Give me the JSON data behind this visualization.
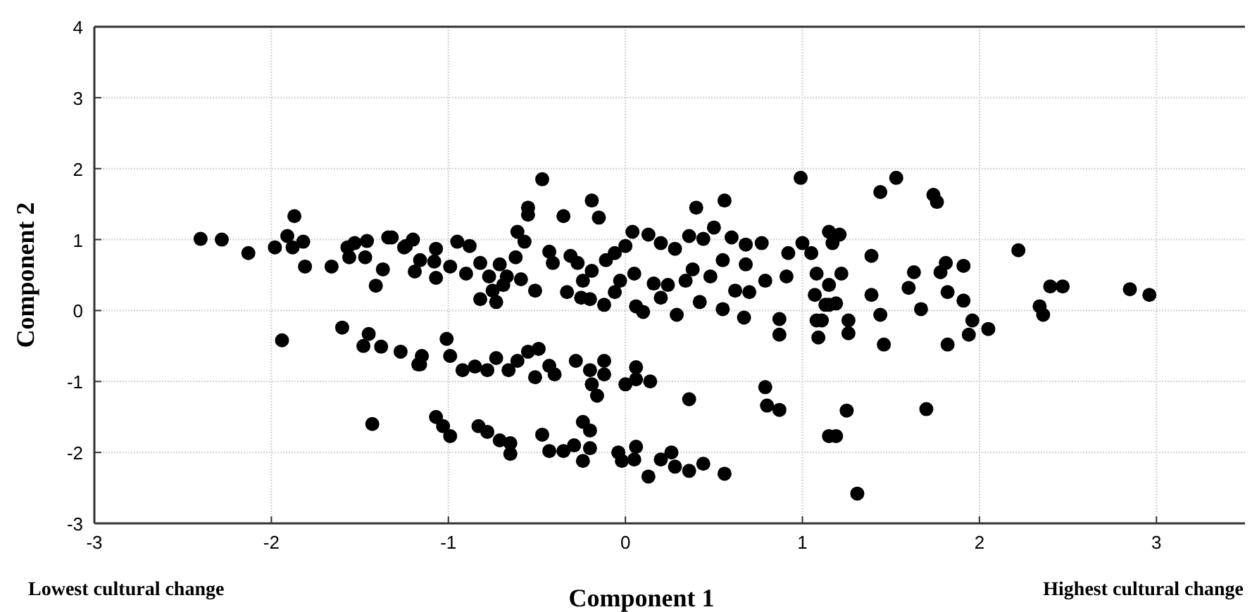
{
  "chart_data": {
    "type": "scatter",
    "xlabel": "Component 1",
    "ylabel": "Component 2",
    "annotations": [
      "Lowest cultural change",
      "Highest cultural change"
    ],
    "xlim": [
      -3,
      3.5
    ],
    "ylim": [
      -3,
      4
    ],
    "xticks": [
      -3,
      -2,
      -1,
      0,
      1,
      2,
      3
    ],
    "yticks": [
      -3,
      -2,
      -1,
      0,
      1,
      2,
      3,
      4
    ],
    "grid": true,
    "marker": "circle",
    "series": [
      {
        "color": "#000000",
        "x": [
          -2.4,
          -2.28,
          -2.13,
          -1.98,
          -1.91,
          -1.87,
          -1.88,
          -1.82,
          -1.81,
          -1.66,
          -1.57,
          -1.56,
          -1.53,
          -1.46,
          -1.47,
          -1.41,
          -1.37,
          -1.34,
          -1.25,
          -1.2,
          -1.19,
          -1.94,
          -1.6,
          -1.48,
          -1.45,
          -1.38,
          -1.27,
          -1.17,
          -1.43,
          -1.32,
          -1.24,
          -1.16,
          -1.07,
          -1.07,
          -1.08,
          -0.99,
          -0.95,
          -0.88,
          -0.9,
          -0.82,
          -0.82,
          -0.77,
          -0.73,
          -0.71,
          -0.75,
          -0.69,
          -0.67,
          -0.62,
          -0.61,
          -0.57,
          -0.59,
          -0.55,
          -0.55,
          -0.51,
          -0.47,
          -0.43,
          -0.41,
          -0.35,
          -0.33,
          -0.31,
          -0.27,
          -0.24,
          -0.25,
          -0.19,
          -0.15,
          -0.19,
          -0.2,
          -0.12,
          -0.11,
          -0.06,
          0.0,
          0.04,
          -0.03,
          -0.06,
          0.05,
          0.06,
          0.1,
          0.13,
          0.2,
          0.16,
          0.2,
          0.24,
          0.28,
          0.29,
          0.34,
          0.36,
          0.38,
          0.4,
          0.42,
          0.44,
          0.48,
          0.5,
          0.56,
          0.55,
          0.55,
          0.6,
          0.62,
          0.68,
          0.68,
          0.67,
          0.7,
          0.77,
          0.79,
          0.87,
          0.87,
          0.91,
          0.92,
          0.99,
          1.0,
          1.05,
          1.07,
          1.08,
          1.09,
          1.08,
          1.15,
          1.15,
          1.15,
          -1.15,
          -1.16,
          -1.01,
          -0.99,
          -0.92,
          -0.85,
          -0.78,
          -0.73,
          -0.66,
          -0.61,
          -0.55,
          -0.49,
          -0.51,
          -0.43,
          -0.4,
          -0.28,
          -0.2,
          -0.12,
          -0.19,
          -0.16,
          -0.12,
          0.0,
          0.06,
          0.06,
          0.14,
          0.36,
          0.79,
          0.8,
          0.87,
          -1.07,
          -1.03,
          -0.99,
          -0.83,
          -0.78,
          -0.71,
          -0.65,
          -0.65,
          -0.47,
          -0.43,
          -0.35,
          -0.29,
          -0.24,
          -0.2,
          -0.24,
          -0.2,
          -0.04,
          -0.02,
          0.06,
          0.05,
          0.13,
          0.2,
          0.26,
          0.28,
          0.36,
          0.44,
          0.56,
          1.21,
          1.17,
          1.22,
          1.13,
          1.19,
          1.11,
          1.26,
          1.26,
          1.44,
          1.53,
          1.39,
          1.39,
          1.44,
          1.46,
          1.6,
          1.63,
          1.67,
          1.74,
          1.76,
          1.78,
          1.81,
          1.82,
          1.82,
          1.91,
          1.91,
          1.96,
          1.94,
          2.05,
          2.22,
          2.34,
          2.36,
          2.4,
          2.47,
          2.85,
          2.96,
          1.25,
          1.15,
          1.19,
          1.7,
          1.31
        ],
        "values": [
          1.01,
          1.0,
          0.81,
          0.89,
          1.05,
          1.33,
          0.89,
          0.97,
          0.62,
          0.62,
          0.89,
          0.75,
          0.95,
          0.98,
          0.75,
          0.35,
          0.58,
          1.03,
          0.89,
          1.0,
          0.55,
          -0.42,
          -0.24,
          -0.5,
          -0.33,
          -0.51,
          -0.58,
          -0.76,
          -1.6,
          1.03,
          0.91,
          0.71,
          0.87,
          0.46,
          0.69,
          0.62,
          0.97,
          0.91,
          0.52,
          0.67,
          0.16,
          0.48,
          0.12,
          0.65,
          0.28,
          0.36,
          0.48,
          0.75,
          1.11,
          0.97,
          0.44,
          1.45,
          1.35,
          0.28,
          1.85,
          0.83,
          0.67,
          1.33,
          0.26,
          0.77,
          0.67,
          0.42,
          0.18,
          1.55,
          1.31,
          0.56,
          0.16,
          0.08,
          0.71,
          0.81,
          0.91,
          1.11,
          0.42,
          0.26,
          0.52,
          0.06,
          -0.02,
          1.07,
          0.95,
          0.38,
          0.18,
          0.36,
          0.87,
          -0.06,
          0.42,
          1.05,
          0.58,
          1.45,
          0.12,
          1.01,
          0.48,
          1.17,
          1.55,
          0.71,
          0.02,
          1.03,
          0.28,
          0.93,
          0.65,
          -0.1,
          0.26,
          0.95,
          0.42,
          -0.12,
          -0.34,
          0.48,
          0.81,
          1.87,
          0.95,
          0.81,
          0.22,
          0.52,
          -0.38,
          -0.14,
          0.36,
          1.11,
          0.08,
          -0.64,
          -0.76,
          -0.4,
          -0.64,
          -0.84,
          -0.79,
          -0.84,
          -0.67,
          -0.84,
          -0.71,
          -0.58,
          -0.54,
          -0.94,
          -0.78,
          -0.9,
          -0.71,
          -0.84,
          -0.71,
          -1.04,
          -1.2,
          -0.9,
          -1.04,
          -0.8,
          -0.97,
          -1.0,
          -1.25,
          -1.08,
          -1.34,
          -1.4,
          -1.5,
          -1.63,
          -1.77,
          -1.63,
          -1.71,
          -1.83,
          -1.87,
          -2.02,
          -1.75,
          -1.98,
          -1.98,
          -1.9,
          -1.57,
          -1.69,
          -2.12,
          -1.94,
          -2.0,
          -2.12,
          -1.92,
          -2.1,
          -2.34,
          -2.1,
          -2.0,
          -2.2,
          -2.26,
          -2.16,
          -2.3,
          1.07,
          0.95,
          0.52,
          0.08,
          0.1,
          -0.14,
          -0.14,
          -0.32,
          1.67,
          1.87,
          0.77,
          0.22,
          -0.06,
          -0.48,
          0.32,
          0.54,
          0.02,
          1.63,
          1.53,
          0.54,
          0.67,
          0.26,
          -0.48,
          0.63,
          0.14,
          -0.14,
          -0.34,
          -0.26,
          0.85,
          0.06,
          -0.06,
          0.34,
          0.34,
          0.3,
          0.22,
          -1.41,
          -1.77,
          -1.77,
          -1.39,
          -2.58
        ]
      }
    ]
  }
}
